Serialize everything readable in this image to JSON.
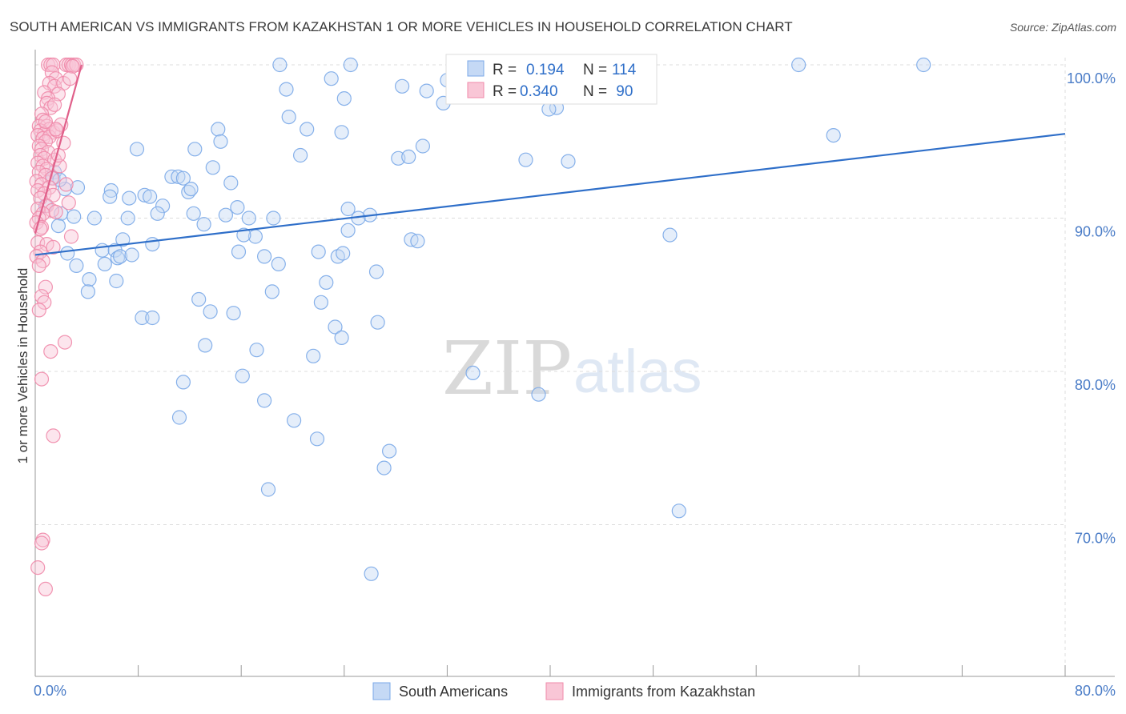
{
  "chart_data": {
    "type": "scatter",
    "title": "SOUTH AMERICAN VS IMMIGRANTS FROM KAZAKHSTAN 1 OR MORE VEHICLES IN HOUSEHOLD CORRELATION CHART",
    "source": "Source: ZipAtlas.com",
    "xlabel": "",
    "ylabel": "1 or more Vehicles in Household",
    "xlim": [
      0,
      80
    ],
    "ylim": [
      60.5,
      101.5
    ],
    "x_tick_labels": [
      "0.0%",
      "80.0%"
    ],
    "y_ticks": [
      {
        "value": 100,
        "label": "100.0%"
      },
      {
        "value": 90,
        "label": "90.0%"
      },
      {
        "value": 80,
        "label": "80.0%"
      },
      {
        "value": 70,
        "label": "70.0%"
      }
    ],
    "grid": true,
    "watermark": {
      "zip": "ZIP",
      "atlas": "atlas"
    },
    "legend": {
      "r_label": "R =",
      "n_label": "N =",
      "entries": [
        {
          "r": "0.194",
          "n": "114"
        },
        {
          "r": "0.340",
          "n": " 90"
        }
      ]
    },
    "series": [
      {
        "name": "South Americans",
        "color": "#7aa8e8",
        "fill": "#c5d9f5",
        "trend_color": "#2f6fc9",
        "trend": {
          "x0": 0,
          "y0": 87.6,
          "x1": 80,
          "y1": 95.5
        },
        "points": [
          [
            19,
            100
          ],
          [
            24.5,
            100
          ],
          [
            32,
            99
          ],
          [
            59.3,
            100
          ],
          [
            69,
            100
          ],
          [
            23,
            99.1
          ],
          [
            19.5,
            98.4
          ],
          [
            28.5,
            98.6
          ],
          [
            30.4,
            98.3
          ],
          [
            24,
            97.8
          ],
          [
            31.7,
            97.5
          ],
          [
            40.5,
            97.2
          ],
          [
            19.7,
            96.6
          ],
          [
            14.2,
            95.8
          ],
          [
            21.1,
            95.8
          ],
          [
            23.8,
            95.6
          ],
          [
            14.4,
            95
          ],
          [
            62,
            95.4
          ],
          [
            7.9,
            94.5
          ],
          [
            12.4,
            94.5
          ],
          [
            30.1,
            94.7
          ],
          [
            20.6,
            94.1
          ],
          [
            28.2,
            93.9
          ],
          [
            29,
            94
          ],
          [
            38.1,
            93.8
          ],
          [
            41.4,
            93.7
          ],
          [
            13.8,
            93.3
          ],
          [
            1.5,
            93
          ],
          [
            10.6,
            92.7
          ],
          [
            11.1,
            92.7
          ],
          [
            11.5,
            92.6
          ],
          [
            15.2,
            92.3
          ],
          [
            2.3,
            91.9
          ],
          [
            5.9,
            91.8
          ],
          [
            11.9,
            91.7
          ],
          [
            12.1,
            91.9
          ],
          [
            8.5,
            91.5
          ],
          [
            7.3,
            91.3
          ],
          [
            9.9,
            90.8
          ],
          [
            15.7,
            90.7
          ],
          [
            2,
            90.3
          ],
          [
            0.8,
            90.8
          ],
          [
            24.3,
            90.6
          ],
          [
            9.5,
            90.3
          ],
          [
            12.3,
            90.3
          ],
          [
            14.8,
            90.2
          ],
          [
            3,
            90.1
          ],
          [
            4.6,
            90
          ],
          [
            7.2,
            90
          ],
          [
            16.6,
            90
          ],
          [
            18.5,
            90
          ],
          [
            26,
            90.2
          ],
          [
            25.1,
            90
          ],
          [
            1.8,
            89.5
          ],
          [
            24.3,
            89.2
          ],
          [
            17.1,
            88.8
          ],
          [
            29.2,
            88.6
          ],
          [
            29.7,
            88.5
          ],
          [
            6.8,
            88.6
          ],
          [
            9.1,
            88.3
          ],
          [
            49.3,
            88.9
          ],
          [
            5.2,
            87.9
          ],
          [
            6.2,
            87.9
          ],
          [
            15.8,
            87.8
          ],
          [
            22,
            87.8
          ],
          [
            2.5,
            87.7
          ],
          [
            23.5,
            87.5
          ],
          [
            23.9,
            87.7
          ],
          [
            17.8,
            87.5
          ],
          [
            6.4,
            87.4
          ],
          [
            3.2,
            86.9
          ],
          [
            5.4,
            87
          ],
          [
            18.9,
            87
          ],
          [
            26.5,
            86.5
          ],
          [
            4.2,
            86
          ],
          [
            6.3,
            85.9
          ],
          [
            22.6,
            85.8
          ],
          [
            4.1,
            85.2
          ],
          [
            12.7,
            84.7
          ],
          [
            22.2,
            84.5
          ],
          [
            13.6,
            83.9
          ],
          [
            15.4,
            83.8
          ],
          [
            8.3,
            83.5
          ],
          [
            9.1,
            83.5
          ],
          [
            23.3,
            82.9
          ],
          [
            26.6,
            83.2
          ],
          [
            23.8,
            82.2
          ],
          [
            13.2,
            81.7
          ],
          [
            17.2,
            81.4
          ],
          [
            21.6,
            81
          ],
          [
            16.1,
            79.7
          ],
          [
            34,
            79.9
          ],
          [
            11.5,
            79.3
          ],
          [
            39.1,
            78.5
          ],
          [
            17.8,
            78.1
          ],
          [
            11.2,
            77
          ],
          [
            20.1,
            76.8
          ],
          [
            21.9,
            75.6
          ],
          [
            27.5,
            74.8
          ],
          [
            27.1,
            73.7
          ],
          [
            18.1,
            72.3
          ],
          [
            50,
            70.9
          ],
          [
            26.1,
            66.8
          ],
          [
            39.9,
            97.1
          ],
          [
            5.8,
            91.4
          ],
          [
            1.4,
            92.6
          ],
          [
            6.6,
            87.5
          ],
          [
            16.2,
            88.9
          ],
          [
            18.4,
            85.2
          ],
          [
            8.9,
            91.4
          ],
          [
            1.9,
            92.5
          ],
          [
            3.3,
            92
          ],
          [
            13.1,
            89.6
          ],
          [
            7.5,
            87.6
          ]
        ]
      },
      {
        "name": "Immigrants from Kazakhstan",
        "color": "#f08aaa",
        "fill": "#f9c6d6",
        "trend_color": "#e0608a",
        "trend": {
          "x0": 0,
          "y0": 89,
          "x1": 3.6,
          "y1": 100
        },
        "points": [
          [
            1,
            100
          ],
          [
            1.2,
            100
          ],
          [
            1.4,
            100
          ],
          [
            2.4,
            100
          ],
          [
            2.6,
            100
          ],
          [
            2.8,
            100
          ],
          [
            3,
            100
          ],
          [
            3.2,
            100
          ],
          [
            2.9,
            99.9
          ],
          [
            1.3,
            99.5
          ],
          [
            1.6,
            99.1
          ],
          [
            1.1,
            98.8
          ],
          [
            1.5,
            98.6
          ],
          [
            2.2,
            98.8
          ],
          [
            0.7,
            98.2
          ],
          [
            1.8,
            98.1
          ],
          [
            1,
            97.8
          ],
          [
            0.9,
            97.5
          ],
          [
            1.2,
            97.2
          ],
          [
            0.5,
            96.8
          ],
          [
            0.6,
            96.4
          ],
          [
            0.3,
            96
          ],
          [
            0.9,
            96
          ],
          [
            1.1,
            95.8
          ],
          [
            0.4,
            95.7
          ],
          [
            0.7,
            95.5
          ],
          [
            1.4,
            95.6
          ],
          [
            0.2,
            95.4
          ],
          [
            0.6,
            95.2
          ],
          [
            1.1,
            95.3
          ],
          [
            0.8,
            95
          ],
          [
            0.3,
            94.7
          ],
          [
            0.5,
            94.5
          ],
          [
            1,
            94.3
          ],
          [
            0.4,
            94.1
          ],
          [
            0.7,
            93.9
          ],
          [
            1.5,
            93.8
          ],
          [
            0.2,
            93.6
          ],
          [
            0.6,
            93.4
          ],
          [
            0.9,
            93.2
          ],
          [
            1.9,
            93.4
          ],
          [
            0.3,
            93
          ],
          [
            0.8,
            92.8
          ],
          [
            1.3,
            92.6
          ],
          [
            0.1,
            92.4
          ],
          [
            0.5,
            92.2
          ],
          [
            1.1,
            92
          ],
          [
            0.2,
            91.8
          ],
          [
            0.7,
            91.6
          ],
          [
            1.4,
            91.5
          ],
          [
            0.4,
            91.3
          ],
          [
            2.6,
            91
          ],
          [
            0.9,
            90.8
          ],
          [
            0.2,
            90.6
          ],
          [
            1.3,
            90.5
          ],
          [
            0.6,
            90.3
          ],
          [
            1.6,
            90.4
          ],
          [
            0.3,
            90
          ],
          [
            0.1,
            89.7
          ],
          [
            0.5,
            89.4
          ],
          [
            2.8,
            88.8
          ],
          [
            0.2,
            88.4
          ],
          [
            0.9,
            88.3
          ],
          [
            1.4,
            88.1
          ],
          [
            0.4,
            87.8
          ],
          [
            0.1,
            87.5
          ],
          [
            0.6,
            87.2
          ],
          [
            0.3,
            86.9
          ],
          [
            0.8,
            85.5
          ],
          [
            0.5,
            84.9
          ],
          [
            0.7,
            84.5
          ],
          [
            0.3,
            84
          ],
          [
            2.3,
            81.9
          ],
          [
            1.2,
            81.3
          ],
          [
            0.5,
            79.5
          ],
          [
            1.4,
            75.8
          ],
          [
            0.6,
            69
          ],
          [
            0.5,
            68.8
          ],
          [
            0.2,
            67.2
          ],
          [
            0.8,
            65.8
          ],
          [
            1.7,
            95.7
          ],
          [
            2,
            96.1
          ],
          [
            1.8,
            94.1
          ],
          [
            2.4,
            92.2
          ],
          [
            2.2,
            94.9
          ],
          [
            0.4,
            89.3
          ],
          [
            1.6,
            95.8
          ],
          [
            0.8,
            96.3
          ],
          [
            2.7,
            99.1
          ],
          [
            1.5,
            97.4
          ]
        ]
      }
    ]
  }
}
